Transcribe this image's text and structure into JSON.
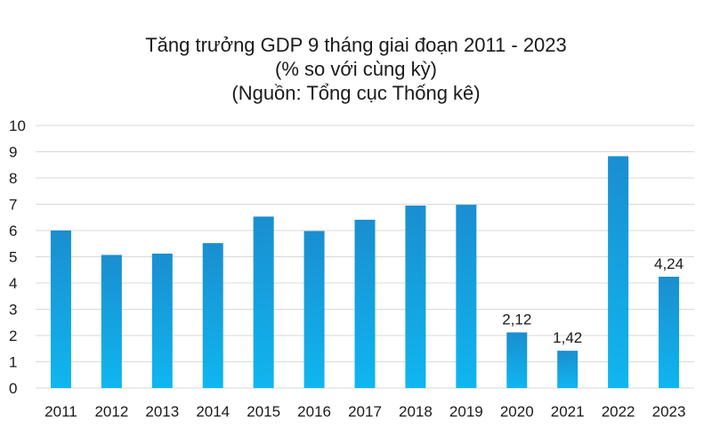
{
  "chart_data": {
    "type": "bar",
    "title_lines": [
      "Tăng trưởng GDP 9 tháng giai đoạn 2011 - 2023",
      "(% so với cùng kỳ)",
      "(Nguồn: Tổng cục Thống kê)"
    ],
    "xlabel": "",
    "ylabel": "",
    "categories": [
      "2011",
      "2012",
      "2013",
      "2014",
      "2015",
      "2016",
      "2017",
      "2018",
      "2019",
      "2020",
      "2021",
      "2022",
      "2023"
    ],
    "values": [
      6.0,
      5.07,
      5.12,
      5.52,
      6.53,
      5.98,
      6.41,
      6.95,
      6.98,
      2.12,
      1.42,
      8.83,
      4.24
    ],
    "data_labels": [
      "",
      "",
      "",
      "",
      "",
      "",
      "",
      "",
      "",
      "2,12",
      "1,42",
      "",
      "4,24"
    ],
    "ylim": [
      0,
      10
    ],
    "yticks": [
      "0",
      "1",
      "2",
      "3",
      "4",
      "5",
      "6",
      "7",
      "8",
      "9",
      "10"
    ],
    "grid": true,
    "legend": "none",
    "colors": {
      "bar_top": "#1a8ed0",
      "bar_bottom": "#0fb6f0",
      "grid": "#d9d9d9"
    }
  }
}
